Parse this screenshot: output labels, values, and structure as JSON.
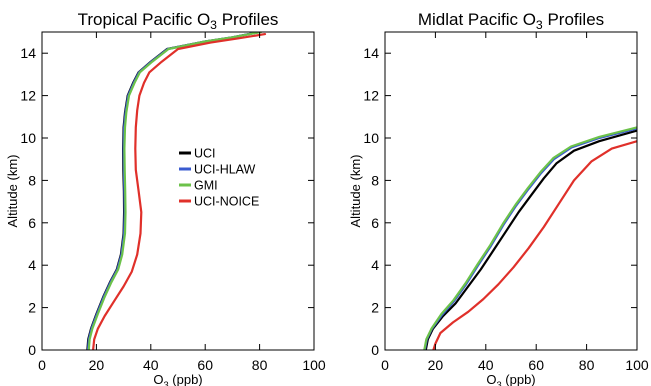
{
  "colors": {
    "UCI": "#000000",
    "UCI-HLAW": "#3a5bd0",
    "GMI": "#6cc24a",
    "UCI-NOICE": "#e0302a"
  },
  "chart_data": [
    {
      "type": "line",
      "title": "Tropical Pacific O",
      "title_sub": "3",
      "title_rest": " Profiles",
      "xlabel": "O",
      "xlabel_sub": "3",
      "xlabel_rest": " (ppb)",
      "ylabel": "Altitude (km)",
      "xlim": [
        0,
        100
      ],
      "ylim": [
        0,
        15
      ],
      "xticks": [
        0,
        20,
        40,
        60,
        80,
        100
      ],
      "yticks": [
        0,
        2,
        4,
        6,
        8,
        10,
        12,
        14
      ],
      "grid": false,
      "legend_position": "center-right",
      "series": [
        {
          "name": "UCI",
          "color": "#000000",
          "points": [
            [
              16.7,
              0
            ],
            [
              17,
              0.5
            ],
            [
              18,
              1
            ],
            [
              20,
              1.7
            ],
            [
              22.5,
              2.5
            ],
            [
              25,
              3.2
            ],
            [
              27.5,
              3.8
            ],
            [
              29,
              4.5
            ],
            [
              30,
              5.5
            ],
            [
              30.2,
              6.5
            ],
            [
              30.1,
              7.5
            ],
            [
              29.9,
              8.5
            ],
            [
              29.8,
              9.5
            ],
            [
              30,
              10.5
            ],
            [
              30.5,
              11.2
            ],
            [
              31.5,
              12
            ],
            [
              33.5,
              12.6
            ],
            [
              35.5,
              13.1
            ],
            [
              40,
              13.6
            ],
            [
              46,
              14.2
            ],
            [
              60,
              14.55
            ],
            [
              70,
              14.75
            ],
            [
              80,
              15
            ]
          ]
        },
        {
          "name": "UCI-HLAW",
          "color": "#3a5bd0",
          "points": [
            [
              16.9,
              0
            ],
            [
              17.2,
              0.5
            ],
            [
              18.2,
              1
            ],
            [
              20.2,
              1.7
            ],
            [
              22.7,
              2.5
            ],
            [
              25.2,
              3.2
            ],
            [
              27.7,
              3.8
            ],
            [
              29.2,
              4.5
            ],
            [
              30.2,
              5.5
            ],
            [
              30.4,
              6.5
            ],
            [
              30.3,
              7.5
            ],
            [
              30.1,
              8.5
            ],
            [
              30,
              9.5
            ],
            [
              30.2,
              10.5
            ],
            [
              30.7,
              11.2
            ],
            [
              31.7,
              12
            ],
            [
              33.7,
              12.6
            ],
            [
              35.7,
              13.1
            ],
            [
              40.2,
              13.6
            ],
            [
              46.2,
              14.2
            ],
            [
              60,
              14.55
            ],
            [
              70,
              14.75
            ],
            [
              80,
              15
            ]
          ]
        },
        {
          "name": "GMI",
          "color": "#6cc24a",
          "points": [
            [
              17.2,
              0
            ],
            [
              17.5,
              0.5
            ],
            [
              18.5,
              1
            ],
            [
              20.5,
              1.7
            ],
            [
              23,
              2.5
            ],
            [
              25.5,
              3.2
            ],
            [
              28,
              3.8
            ],
            [
              29.5,
              4.5
            ],
            [
              30.5,
              5.5
            ],
            [
              30.7,
              6.5
            ],
            [
              30.6,
              7.5
            ],
            [
              30.4,
              8.5
            ],
            [
              30.3,
              9.5
            ],
            [
              30.5,
              10.5
            ],
            [
              31,
              11.2
            ],
            [
              32,
              12
            ],
            [
              34,
              12.6
            ],
            [
              36,
              13.1
            ],
            [
              40.5,
              13.6
            ],
            [
              46.5,
              14.2
            ],
            [
              60,
              14.55
            ],
            [
              70,
              14.75
            ],
            [
              80.5,
              15
            ]
          ]
        },
        {
          "name": "UCI-NOICE",
          "color": "#e0302a",
          "points": [
            [
              18.8,
              0
            ],
            [
              19.2,
              0.5
            ],
            [
              20.5,
              1
            ],
            [
              23,
              1.6
            ],
            [
              26.5,
              2.3
            ],
            [
              30,
              3
            ],
            [
              33,
              3.7
            ],
            [
              35,
              4.5
            ],
            [
              36.2,
              5.5
            ],
            [
              36.5,
              6.5
            ],
            [
              35.5,
              7.5
            ],
            [
              34.5,
              8.5
            ],
            [
              34.3,
              9.5
            ],
            [
              34.5,
              10.5
            ],
            [
              35,
              11.3
            ],
            [
              35.8,
              12
            ],
            [
              37.5,
              12.6
            ],
            [
              39.5,
              13.1
            ],
            [
              44,
              13.6
            ],
            [
              50,
              14.2
            ],
            [
              62,
              14.5
            ],
            [
              72,
              14.7
            ],
            [
              82,
              14.9
            ]
          ]
        }
      ]
    },
    {
      "type": "line",
      "title": "Midlat Pacific O",
      "title_sub": "3",
      "title_rest": " Profiles",
      "xlabel": "O",
      "xlabel_sub": "3",
      "xlabel_rest": " (ppb)",
      "ylabel": "Altitude (km)",
      "xlim": [
        0,
        100
      ],
      "ylim": [
        0,
        15
      ],
      "xticks": [
        0,
        20,
        40,
        60,
        80,
        100
      ],
      "yticks": [
        0,
        2,
        4,
        6,
        8,
        10,
        12,
        14
      ],
      "grid": false,
      "series": [
        {
          "name": "UCI",
          "color": "#000000",
          "points": [
            [
              16.2,
              0
            ],
            [
              17,
              0.5
            ],
            [
              19,
              1
            ],
            [
              23,
              1.6
            ],
            [
              28,
              2.2
            ],
            [
              33,
              3
            ],
            [
              38,
              3.8
            ],
            [
              43,
              4.7
            ],
            [
              48,
              5.6
            ],
            [
              53,
              6.5
            ],
            [
              58,
              7.3
            ],
            [
              63,
              8.1
            ],
            [
              68,
              8.8
            ],
            [
              75,
              9.4
            ],
            [
              85,
              9.85
            ],
            [
              100,
              10.35
            ]
          ]
        },
        {
          "name": "UCI-HLAW",
          "color": "#3a5bd0",
          "points": [
            [
              15.8,
              0
            ],
            [
              16.6,
              0.5
            ],
            [
              18.6,
              1
            ],
            [
              22.6,
              1.65
            ],
            [
              27.4,
              2.3
            ],
            [
              32.2,
              3.1
            ],
            [
              37,
              4
            ],
            [
              42,
              4.9
            ],
            [
              47,
              5.9
            ],
            [
              52,
              6.8
            ],
            [
              57,
              7.6
            ],
            [
              62,
              8.35
            ],
            [
              67,
              9.0
            ],
            [
              74,
              9.55
            ],
            [
              85,
              10.0
            ],
            [
              100,
              10.45
            ]
          ]
        },
        {
          "name": "GMI",
          "color": "#6cc24a",
          "points": [
            [
              15.6,
              0
            ],
            [
              16.4,
              0.5
            ],
            [
              18.4,
              1
            ],
            [
              22.4,
              1.7
            ],
            [
              27.2,
              2.35
            ],
            [
              32,
              3.15
            ],
            [
              36.8,
              4.05
            ],
            [
              41.8,
              4.95
            ],
            [
              46.8,
              5.95
            ],
            [
              51.8,
              6.85
            ],
            [
              56.8,
              7.65
            ],
            [
              61.8,
              8.4
            ],
            [
              66.8,
              9.05
            ],
            [
              73.8,
              9.6
            ],
            [
              85,
              10.05
            ],
            [
              100,
              10.5
            ]
          ]
        },
        {
          "name": "UCI-NOICE",
          "color": "#e0302a",
          "points": [
            [
              19.2,
              0
            ],
            [
              20,
              0.3
            ],
            [
              22,
              0.8
            ],
            [
              27,
              1.3
            ],
            [
              33,
              1.8
            ],
            [
              39,
              2.4
            ],
            [
              45,
              3.1
            ],
            [
              51,
              3.9
            ],
            [
              57,
              4.8
            ],
            [
              63,
              5.8
            ],
            [
              69,
              6.9
            ],
            [
              75,
              8.0
            ],
            [
              82,
              8.9
            ],
            [
              90,
              9.5
            ],
            [
              100,
              9.85
            ]
          ]
        }
      ]
    }
  ]
}
